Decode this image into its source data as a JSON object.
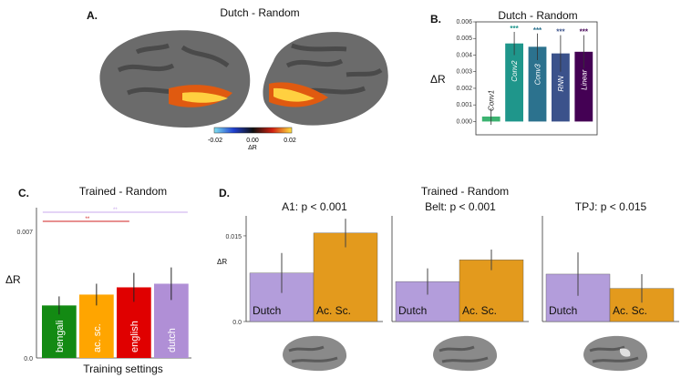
{
  "panelA": {
    "letter": "A.",
    "title": "Dutch - Random",
    "colorbar": {
      "ticks": [
        "-0.02",
        "0.00",
        "0.02"
      ],
      "label": "ΔR"
    }
  },
  "panelB": {
    "letter": "B.",
    "title": "Dutch - Random",
    "ylabel": "ΔR",
    "colors": [
      "#3cb371",
      "#1f968b",
      "#2c728e",
      "#3b528b",
      "#440154"
    ]
  },
  "panelC": {
    "letter": "C.",
    "title": "Trained - Random",
    "ylabel": "ΔR",
    "xlabel": "Training settings",
    "colors": [
      "#138a13",
      "#ffa500",
      "#e00000",
      "#b08fd6"
    ],
    "sig": [
      "**",
      "**"
    ]
  },
  "panelD": {
    "letter": "D.",
    "title": "Trained - Random",
    "ylabel": "ΔR",
    "colors": {
      "dutch": "#b39ddb",
      "acsc": "#e39a1d"
    }
  },
  "chart_data": [
    {
      "type": "bar",
      "title": "Dutch - Random",
      "ylabel": "ΔR",
      "ylim": [
        -0.0008,
        0.006
      ],
      "yticks": [
        "0.000",
        "0.001",
        "0.002",
        "0.003",
        "0.004",
        "0.005",
        "0.006"
      ],
      "categories": [
        "Conv1",
        "Conv2",
        "Conv3",
        "RNN",
        "Linear"
      ],
      "values": [
        0.0003,
        0.0047,
        0.0045,
        0.0041,
        0.0042
      ],
      "errors": [
        0.0005,
        0.0007,
        0.0008,
        0.0011,
        0.001
      ],
      "significance": [
        "",
        "***",
        "***",
        "***",
        "***"
      ]
    },
    {
      "type": "bar",
      "title": "Trained - Random",
      "ylabel": "ΔR",
      "xlabel": "Training settings",
      "ylim": [
        0,
        0.0083
      ],
      "yticks": [
        "0.0",
        "0.007"
      ],
      "categories": [
        "bengali",
        "ac. sc.",
        "english",
        "dutch"
      ],
      "values": [
        0.0029,
        0.0035,
        0.0039,
        0.0041
      ],
      "errors": [
        0.0005,
        0.0006,
        0.0008,
        0.0009
      ]
    },
    {
      "type": "bar",
      "title": "A1: p < 0.001",
      "ylabel": "ΔR",
      "ylim": [
        0,
        0.0185
      ],
      "yticks": [
        "0.0",
        "0.015"
      ],
      "categories": [
        "Dutch",
        "Ac. Sc."
      ],
      "values": [
        0.0085,
        0.0155
      ],
      "errors": [
        0.0035,
        0.0025
      ]
    },
    {
      "type": "bar",
      "title": "Belt: p < 0.001",
      "ylim": [
        0,
        0.0185
      ],
      "categories": [
        "Dutch",
        "Ac. Sc."
      ],
      "values": [
        0.007,
        0.0108
      ],
      "errors": [
        0.0023,
        0.0018
      ]
    },
    {
      "type": "bar",
      "title": "TPJ: p < 0.015",
      "ylim": [
        0,
        0.0185
      ],
      "categories": [
        "Dutch",
        "Ac. Sc."
      ],
      "values": [
        0.0083,
        0.0058
      ],
      "errors": [
        0.0038,
        0.0025
      ]
    }
  ]
}
